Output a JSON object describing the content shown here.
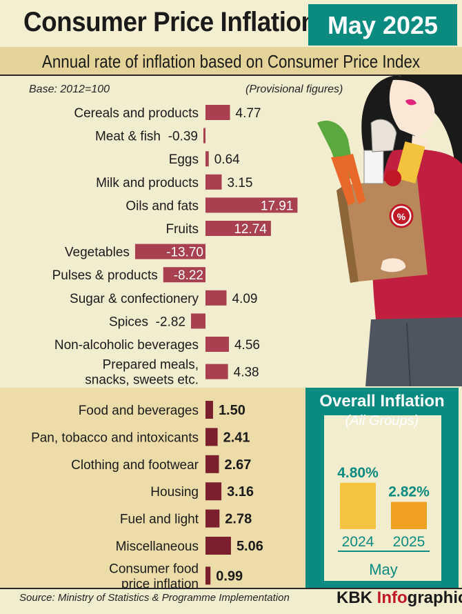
{
  "header": {
    "title": "Consumer Price Inflation",
    "month": "May 2025",
    "subtitle": "Annual rate of inflation based on Consumer Price Index"
  },
  "notes": {
    "base": "Base: 2012=100",
    "provisional": "(Provisional figures)"
  },
  "footer": {
    "source": "Source: Ministry of Statistics & Programme Implementation",
    "brand_prefix": "KBK ",
    "brand_accent": "Info",
    "brand_suffix": "graphics"
  },
  "colors": {
    "bar_food": "#a8404f",
    "bar_group": "#7a1f2b",
    "teal": "#0b8a80",
    "bar_2024": "#f5c542",
    "bar_2025": "#f0a020",
    "brand_red": "#c01826"
  },
  "chart_data": [
    {
      "type": "bar",
      "orientation": "horizontal",
      "categories": [
        "Cereals and products",
        "Meat & fish",
        "Eggs",
        "Milk and products",
        "Oils and fats",
        "Fruits",
        "Vegetables",
        "Pulses & products",
        "Sugar & confectionery",
        "Spices",
        "Non-alcoholic beverages",
        [
          "Prepared meals,",
          "snacks, sweets etc."
        ]
      ],
      "values": [
        4.77,
        -0.39,
        0.64,
        3.15,
        17.91,
        12.74,
        -13.7,
        -8.22,
        4.09,
        -2.82,
        4.56,
        4.38
      ],
      "value_labels": [
        "4.77",
        "-0.39",
        "0.64",
        "3.15",
        "17.91",
        "12.74",
        "-13.70",
        "-8.22",
        "4.09",
        "-2.82",
        "4.56",
        "4.38"
      ]
    },
    {
      "type": "bar",
      "orientation": "horizontal",
      "categories": [
        "Food and beverages",
        "Pan, tobacco and intoxicants",
        "Clothing and footwear",
        "Housing",
        "Fuel and light",
        "Miscellaneous",
        [
          "Consumer food",
          "price inflation"
        ]
      ],
      "values": [
        1.5,
        2.41,
        2.67,
        3.16,
        2.78,
        5.06,
        0.99
      ],
      "value_labels": [
        "1.50",
        "2.41",
        "2.67",
        "3.16",
        "2.78",
        "5.06",
        "0.99"
      ]
    },
    {
      "type": "bar",
      "title": "Overall Inflation",
      "subtitle": "(All Groups)",
      "categories": [
        "2024",
        "2025"
      ],
      "values": [
        4.8,
        2.82
      ],
      "value_labels": [
        "4.80%",
        "2.82%"
      ],
      "xlabel": "May"
    }
  ]
}
